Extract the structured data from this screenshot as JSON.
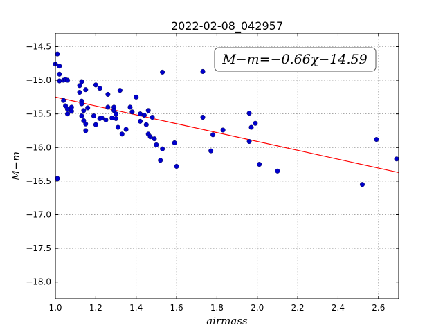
{
  "chart_data": {
    "type": "scatter",
    "title": "2022-02-08_042957",
    "xlabel": "airmass",
    "ylabel": "M−m",
    "xlim": [
      1.0,
      2.7
    ],
    "ylim": [
      -18.25,
      -14.3
    ],
    "x_ticks": [
      "1.0",
      "1.2",
      "1.4",
      "1.6",
      "1.8",
      "2.0",
      "2.2",
      "2.4",
      "2.6"
    ],
    "y_ticks": [
      "−14.5",
      "−15.0",
      "−15.5",
      "−16.0",
      "−16.5",
      "−17.0",
      "−17.5",
      "−18.0"
    ],
    "grid": true,
    "annotation": "M−m=−0.66χ−14.59",
    "fit": {
      "slope": -0.66,
      "intercept": -14.59,
      "color": "#ff0000"
    },
    "marker_color": "#0000cc",
    "points": [
      [
        1.0,
        -14.76
      ],
      [
        1.01,
        -14.61
      ],
      [
        1.02,
        -14.79
      ],
      [
        1.02,
        -14.91
      ],
      [
        1.02,
        -15.01
      ],
      [
        1.01,
        -16.46
      ],
      [
        1.04,
        -15.0
      ],
      [
        1.05,
        -14.99
      ],
      [
        1.06,
        -15.0
      ],
      [
        1.04,
        -15.3
      ],
      [
        1.05,
        -15.38
      ],
      [
        1.06,
        -15.43
      ],
      [
        1.06,
        -15.5
      ],
      [
        1.08,
        -15.4
      ],
      [
        1.08,
        -15.46
      ],
      [
        1.12,
        -15.08
      ],
      [
        1.12,
        -15.18
      ],
      [
        1.13,
        -15.02
      ],
      [
        1.13,
        -15.31
      ],
      [
        1.13,
        -15.35
      ],
      [
        1.14,
        -15.45
      ],
      [
        1.13,
        -15.53
      ],
      [
        1.14,
        -15.6
      ],
      [
        1.15,
        -15.65
      ],
      [
        1.15,
        -15.75
      ],
      [
        1.15,
        -15.14
      ],
      [
        1.16,
        -15.41
      ],
      [
        1.19,
        -15.53
      ],
      [
        1.2,
        -15.07
      ],
      [
        1.2,
        -15.66
      ],
      [
        1.22,
        -15.12
      ],
      [
        1.22,
        -15.57
      ],
      [
        1.23,
        -15.56
      ],
      [
        1.25,
        -15.59
      ],
      [
        1.26,
        -15.21
      ],
      [
        1.26,
        -15.4
      ],
      [
        1.28,
        -15.56
      ],
      [
        1.29,
        -15.4
      ],
      [
        1.29,
        -15.45
      ],
      [
        1.3,
        -15.57
      ],
      [
        1.3,
        -15.5
      ],
      [
        1.32,
        -15.15
      ],
      [
        1.31,
        -15.7
      ],
      [
        1.33,
        -15.8
      ],
      [
        1.35,
        -15.73
      ],
      [
        1.37,
        -15.4
      ],
      [
        1.38,
        -15.47
      ],
      [
        1.4,
        -15.25
      ],
      [
        1.42,
        -15.61
      ],
      [
        1.42,
        -15.5
      ],
      [
        1.44,
        -15.52
      ],
      [
        1.45,
        -15.66
      ],
      [
        1.46,
        -15.45
      ],
      [
        1.46,
        -15.8
      ],
      [
        1.47,
        -15.84
      ],
      [
        1.48,
        -15.55
      ],
      [
        1.49,
        -15.87
      ],
      [
        1.5,
        -15.96
      ],
      [
        1.52,
        -16.19
      ],
      [
        1.53,
        -16.02
      ],
      [
        1.53,
        -14.88
      ],
      [
        1.59,
        -15.93
      ],
      [
        1.6,
        -16.28
      ],
      [
        1.73,
        -14.87
      ],
      [
        1.73,
        -15.55
      ],
      [
        1.77,
        -16.05
      ],
      [
        1.78,
        -15.81
      ],
      [
        1.83,
        -15.74
      ],
      [
        1.96,
        -15.49
      ],
      [
        1.96,
        -15.91
      ],
      [
        1.97,
        -15.7
      ],
      [
        1.99,
        -15.64
      ],
      [
        2.01,
        -16.25
      ],
      [
        2.1,
        -16.35
      ],
      [
        2.52,
        -16.55
      ],
      [
        2.59,
        -15.88
      ],
      [
        2.69,
        -16.17
      ]
    ]
  }
}
